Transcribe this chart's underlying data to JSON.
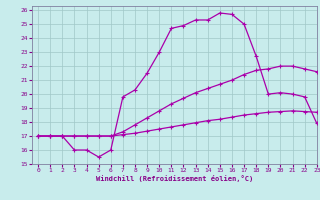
{
  "xlabel": "Windchill (Refroidissement éolien,°C)",
  "background_color": "#c8ecec",
  "grid_color": "#a0c8c8",
  "line_color": "#aa00aa",
  "xlim": [
    -0.5,
    23
  ],
  "ylim": [
    15,
    26.3
  ],
  "yticks": [
    15,
    16,
    17,
    18,
    19,
    20,
    21,
    22,
    23,
    24,
    25,
    26
  ],
  "xticks": [
    0,
    1,
    2,
    3,
    4,
    5,
    6,
    7,
    8,
    9,
    10,
    11,
    12,
    13,
    14,
    15,
    16,
    17,
    18,
    19,
    20,
    21,
    22,
    23
  ],
  "line1_x": [
    0,
    1,
    2,
    3,
    4,
    5,
    6,
    7,
    8,
    9,
    10,
    11,
    12,
    13,
    14,
    15,
    16,
    17,
    18,
    19,
    20,
    21,
    22,
    23
  ],
  "line1_y": [
    17,
    17,
    17,
    16,
    16,
    15.5,
    16,
    19.8,
    20.3,
    21.5,
    23,
    24.7,
    24.9,
    25.3,
    25.3,
    25.8,
    25.7,
    25,
    22.7,
    20,
    20.1,
    20,
    19.8,
    17.9
  ],
  "line2_x": [
    0,
    1,
    2,
    3,
    4,
    5,
    6,
    7,
    8,
    9,
    10,
    11,
    12,
    13,
    14,
    15,
    16,
    17,
    18,
    19,
    20,
    21,
    22,
    23
  ],
  "line2_y": [
    17,
    17,
    17,
    17,
    17,
    17,
    17,
    17.3,
    17.8,
    18.3,
    18.8,
    19.3,
    19.7,
    20.1,
    20.4,
    20.7,
    21.0,
    21.4,
    21.7,
    21.8,
    22.0,
    22.0,
    21.8,
    21.6
  ],
  "line3_x": [
    0,
    1,
    2,
    3,
    4,
    5,
    6,
    7,
    8,
    9,
    10,
    11,
    12,
    13,
    14,
    15,
    16,
    17,
    18,
    19,
    20,
    21,
    22,
    23
  ],
  "line3_y": [
    17,
    17,
    17,
    17,
    17,
    17,
    17,
    17.1,
    17.2,
    17.35,
    17.5,
    17.65,
    17.8,
    17.95,
    18.1,
    18.2,
    18.35,
    18.5,
    18.6,
    18.7,
    18.75,
    18.8,
    18.75,
    18.7
  ]
}
